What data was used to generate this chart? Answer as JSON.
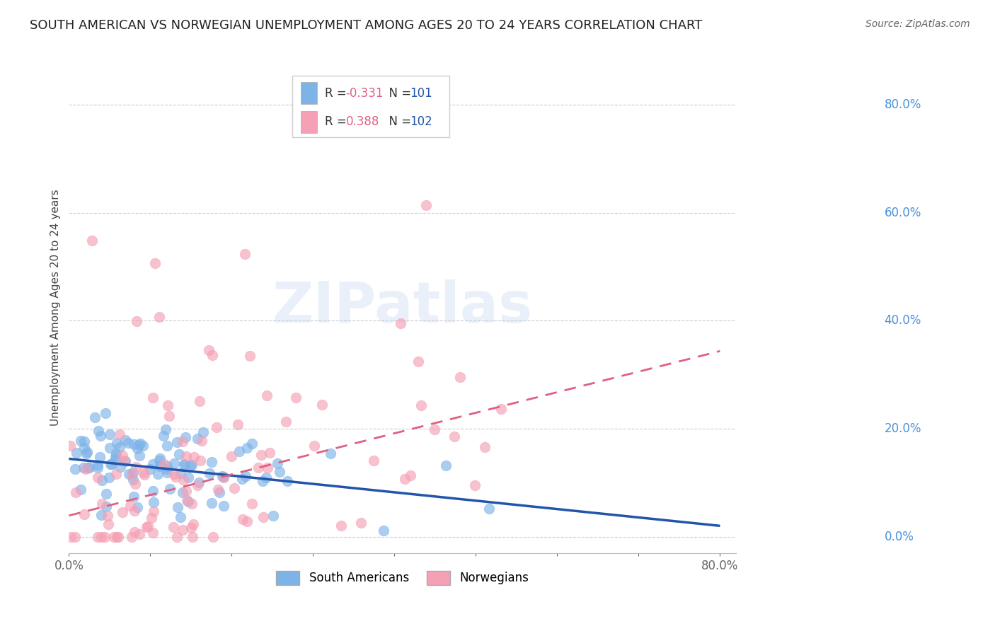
{
  "title": "SOUTH AMERICAN VS NORWEGIAN UNEMPLOYMENT AMONG AGES 20 TO 24 YEARS CORRELATION CHART",
  "source": "Source: ZipAtlas.com",
  "ylabel": "Unemployment Among Ages 20 to 24 years",
  "xlim": [
    0.0,
    0.82
  ],
  "ylim": [
    -0.03,
    0.88
  ],
  "xticks": [
    0.0,
    0.1,
    0.2,
    0.3,
    0.4,
    0.5,
    0.6,
    0.7,
    0.8
  ],
  "xtick_labels": [
    "0.0%",
    "",
    "",
    "",
    "",
    "",
    "",
    "",
    "80.0%"
  ],
  "ytick_labels_right": [
    "0.0%",
    "20.0%",
    "40.0%",
    "60.0%",
    "80.0%"
  ],
  "ytick_vals_right": [
    0.0,
    0.2,
    0.4,
    0.6,
    0.8
  ],
  "blue_color": "#7EB3E8",
  "pink_color": "#F5A0B5",
  "blue_line_color": "#2255AA",
  "pink_line_color": "#E06080",
  "R_blue": -0.331,
  "N_blue": 101,
  "R_pink": 0.388,
  "N_pink": 102,
  "background_color": "#FFFFFF",
  "grid_color": "#CCCCCC",
  "watermark_text": "ZIPatlas",
  "title_fontsize": 13,
  "source_fontsize": 10,
  "seed_blue": 42,
  "seed_pink": 77,
  "blue_intercept": 0.145,
  "blue_slope": -0.155,
  "pink_intercept": 0.04,
  "pink_slope": 0.38
}
